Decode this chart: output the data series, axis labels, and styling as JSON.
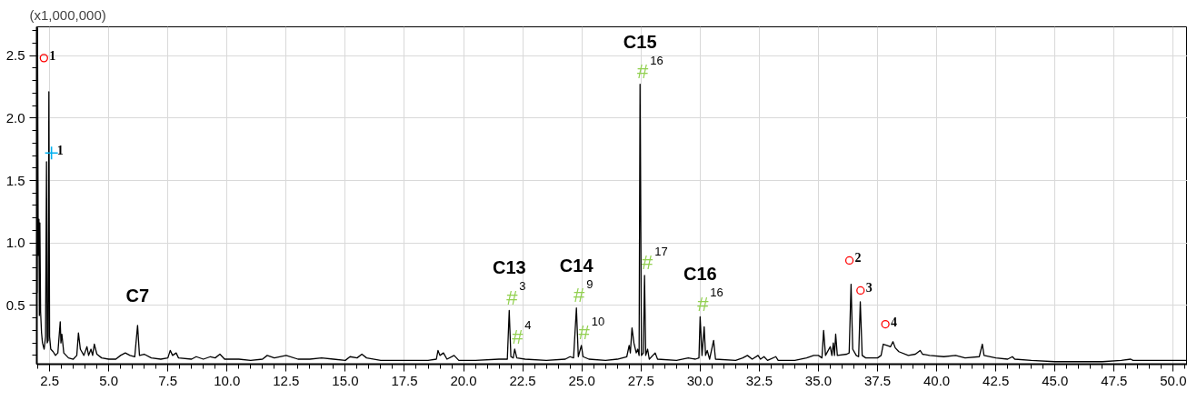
{
  "chart_data": {
    "type": "line",
    "ylabel": "(x1,000,000)",
    "xlim": [
      1.96,
      50.6
    ],
    "ylim": [
      0.03,
      2.73
    ],
    "xticks": [
      2.5,
      {
        "value": 5,
        "label": "5.0"
      },
      7.5,
      {
        "value": 10,
        "label": "10.0"
      },
      12.5,
      {
        "value": 15,
        "label": "15.0"
      },
      17.5,
      {
        "value": 20,
        "label": "20.0"
      },
      22.5,
      {
        "value": 25,
        "label": "25.0"
      },
      27.5,
      {
        "value": 30,
        "label": "30.0"
      },
      32.5,
      {
        "value": 35,
        "label": "35.0"
      },
      37.5,
      {
        "value": 40,
        "label": "40.0"
      },
      42.5,
      {
        "value": 45,
        "label": "45.0"
      },
      47.5,
      {
        "value": 50,
        "label": "50.0"
      }
    ],
    "yticks": [
      0.5,
      {
        "value": 1,
        "label": "1.0"
      },
      1.5,
      {
        "value": 2,
        "label": "2.0"
      },
      2.5
    ],
    "grid": true,
    "annotations": [
      {
        "text": "C7",
        "x": 6.22,
        "y": 0.34
      },
      {
        "text": "C13",
        "x": 21.93,
        "y": 0.46
      },
      {
        "text": "C14",
        "x": 24.77,
        "y": 0.48
      },
      {
        "text": "C15",
        "x": 27.46,
        "y": 2.27
      },
      {
        "text": "C16",
        "x": 30.0,
        "y": 0.41
      },
      {
        "text": "1",
        "x": 2.26,
        "y": 2.48
      },
      {
        "text": "2",
        "x": 36.31,
        "y": 0.86
      },
      {
        "text": "3",
        "x": 36.78,
        "y": 0.62
      },
      {
        "text": "4",
        "x": 37.83,
        "y": 0.35
      },
      {
        "text": "1",
        "x": 2.58,
        "y": 1.72
      },
      {
        "text": "#",
        "x": 21.93,
        "y": 0.46
      },
      {
        "text": "3",
        "x": 21.93,
        "y": 0.46
      },
      {
        "text": "#",
        "x": 22.16,
        "y": 0.15
      },
      {
        "text": "4",
        "x": 22.16,
        "y": 0.15
      },
      {
        "text": "#",
        "x": 24.77,
        "y": 0.48
      },
      {
        "text": "9",
        "x": 24.77,
        "y": 0.48
      },
      {
        "text": "#",
        "x": 24.98,
        "y": 0.18
      },
      {
        "text": "10",
        "x": 24.98,
        "y": 0.18
      },
      {
        "text": "#",
        "x": 27.46,
        "y": 2.27
      },
      {
        "text": "16",
        "x": 27.46,
        "y": 2.27
      },
      {
        "text": "#",
        "x": 27.65,
        "y": 0.74
      },
      {
        "text": "17",
        "x": 27.65,
        "y": 0.74
      },
      {
        "text": "#",
        "x": 30.0,
        "y": 0.41
      },
      {
        "text": "16",
        "x": 30.0,
        "y": 0.41
      }
    ],
    "series": [
      {
        "color": "#000000",
        "marker": "none",
        "line_style": "solid",
        "x": [
          1.97,
          1.99,
          2.02,
          2.05,
          2.07,
          2.09,
          2.12,
          2.16,
          2.2,
          2.27,
          2.33,
          2.37,
          2.4,
          2.44,
          2.47,
          2.5,
          2.55,
          2.65,
          2.75,
          2.85,
          2.95,
          2.98,
          3.02,
          3.1,
          3.3,
          3.5,
          3.65,
          3.72,
          3.8,
          3.95,
          4.08,
          4.15,
          4.25,
          4.32,
          4.39,
          4.5,
          4.7,
          5.0,
          5.3,
          5.5,
          5.7,
          5.9,
          6.1,
          6.22,
          6.3,
          6.5,
          6.8,
          7.2,
          7.5,
          7.6,
          7.7,
          7.85,
          7.95,
          8.5,
          8.7,
          9.0,
          9.3,
          9.5,
          9.7,
          9.9,
          10.5,
          11.0,
          11.5,
          11.7,
          12.0,
          12.5,
          13.0,
          13.5,
          14.0,
          14.5,
          15.0,
          15.2,
          15.5,
          15.7,
          15.9,
          16.5,
          17.5,
          18.5,
          18.85,
          18.92,
          19.0,
          19.15,
          19.3,
          19.6,
          19.8,
          20.5,
          21.5,
          21.85,
          21.93,
          22.0,
          22.1,
          22.16,
          22.25,
          22.6,
          23.5,
          24.3,
          24.5,
          24.65,
          24.77,
          24.85,
          24.98,
          25.05,
          25.3,
          26.0,
          26.5,
          26.9,
          27.0,
          27.05,
          27.12,
          27.2,
          27.3,
          27.36,
          27.42,
          27.46,
          27.52,
          27.6,
          27.65,
          27.7,
          27.78,
          27.85,
          28.1,
          28.2,
          29.0,
          29.5,
          29.8,
          29.95,
          30.0,
          30.08,
          30.17,
          30.23,
          30.3,
          30.4,
          30.57,
          30.65,
          31.5,
          31.8,
          32.0,
          32.2,
          32.45,
          32.55,
          32.7,
          32.85,
          33.2,
          33.3,
          34.0,
          34.5,
          34.8,
          35.0,
          35.15,
          35.22,
          35.3,
          35.5,
          35.57,
          35.63,
          35.68,
          35.73,
          35.8,
          36.2,
          36.3,
          36.38,
          36.45,
          36.6,
          36.7,
          36.77,
          36.85,
          37.0,
          37.2,
          37.5,
          37.65,
          37.74,
          37.9,
          38.05,
          38.15,
          38.25,
          38.4,
          38.8,
          39.1,
          39.3,
          39.4,
          39.7,
          40.3,
          40.8,
          41.2,
          41.8,
          41.93,
          42.0,
          42.5,
          43.0,
          43.2,
          43.3,
          44.0,
          45.0,
          46.0,
          47.0,
          47.8,
          48.2,
          48.3,
          49.0,
          50.0,
          50.55
        ],
        "values": [
          0.6,
          2.72,
          0.9,
          1.19,
          0.42,
          1.16,
          0.45,
          0.28,
          0.2,
          0.15,
          0.25,
          1.65,
          0.2,
          0.22,
          2.21,
          0.25,
          0.15,
          0.13,
          0.1,
          0.12,
          0.37,
          0.2,
          0.27,
          0.12,
          0.08,
          0.07,
          0.1,
          0.28,
          0.15,
          0.1,
          0.17,
          0.1,
          0.15,
          0.1,
          0.19,
          0.11,
          0.08,
          0.07,
          0.07,
          0.1,
          0.12,
          0.1,
          0.09,
          0.34,
          0.1,
          0.11,
          0.08,
          0.07,
          0.08,
          0.14,
          0.1,
          0.12,
          0.08,
          0.07,
          0.09,
          0.07,
          0.09,
          0.08,
          0.11,
          0.07,
          0.07,
          0.06,
          0.07,
          0.1,
          0.08,
          0.1,
          0.07,
          0.07,
          0.08,
          0.07,
          0.06,
          0.09,
          0.08,
          0.11,
          0.08,
          0.06,
          0.06,
          0.06,
          0.07,
          0.14,
          0.1,
          0.12,
          0.07,
          0.1,
          0.06,
          0.06,
          0.07,
          0.07,
          0.46,
          0.09,
          0.08,
          0.15,
          0.08,
          0.07,
          0.06,
          0.07,
          0.09,
          0.08,
          0.48,
          0.09,
          0.18,
          0.09,
          0.07,
          0.06,
          0.07,
          0.09,
          0.18,
          0.12,
          0.32,
          0.2,
          0.12,
          0.15,
          0.1,
          2.27,
          0.1,
          0.12,
          0.74,
          0.1,
          0.15,
          0.07,
          0.12,
          0.07,
          0.06,
          0.08,
          0.07,
          0.08,
          0.41,
          0.1,
          0.33,
          0.1,
          0.14,
          0.07,
          0.22,
          0.07,
          0.06,
          0.08,
          0.1,
          0.07,
          0.1,
          0.07,
          0.09,
          0.06,
          0.09,
          0.06,
          0.06,
          0.08,
          0.1,
          0.1,
          0.08,
          0.3,
          0.1,
          0.17,
          0.1,
          0.2,
          0.1,
          0.27,
          0.1,
          0.11,
          0.12,
          0.67,
          0.15,
          0.1,
          0.09,
          0.53,
          0.1,
          0.08,
          0.08,
          0.08,
          0.1,
          0.19,
          0.18,
          0.17,
          0.21,
          0.16,
          0.13,
          0.1,
          0.11,
          0.14,
          0.11,
          0.1,
          0.09,
          0.1,
          0.08,
          0.09,
          0.19,
          0.1,
          0.08,
          0.07,
          0.09,
          0.07,
          0.06,
          0.05,
          0.05,
          0.05,
          0.06,
          0.07,
          0.06,
          0.06,
          0.06,
          0.06
        ]
      },
      {
        "type": "scatter",
        "color": "#ff0000",
        "marker": "circle",
        "x": [
          2.26,
          36.31,
          36.78,
          37.83
        ],
        "values": [
          2.48,
          0.86,
          0.62,
          0.35
        ]
      },
      {
        "type": "scatter",
        "color": "#00b0f0",
        "marker": "cross",
        "x": [
          2.58
        ],
        "values": [
          1.72
        ]
      }
    ]
  }
}
